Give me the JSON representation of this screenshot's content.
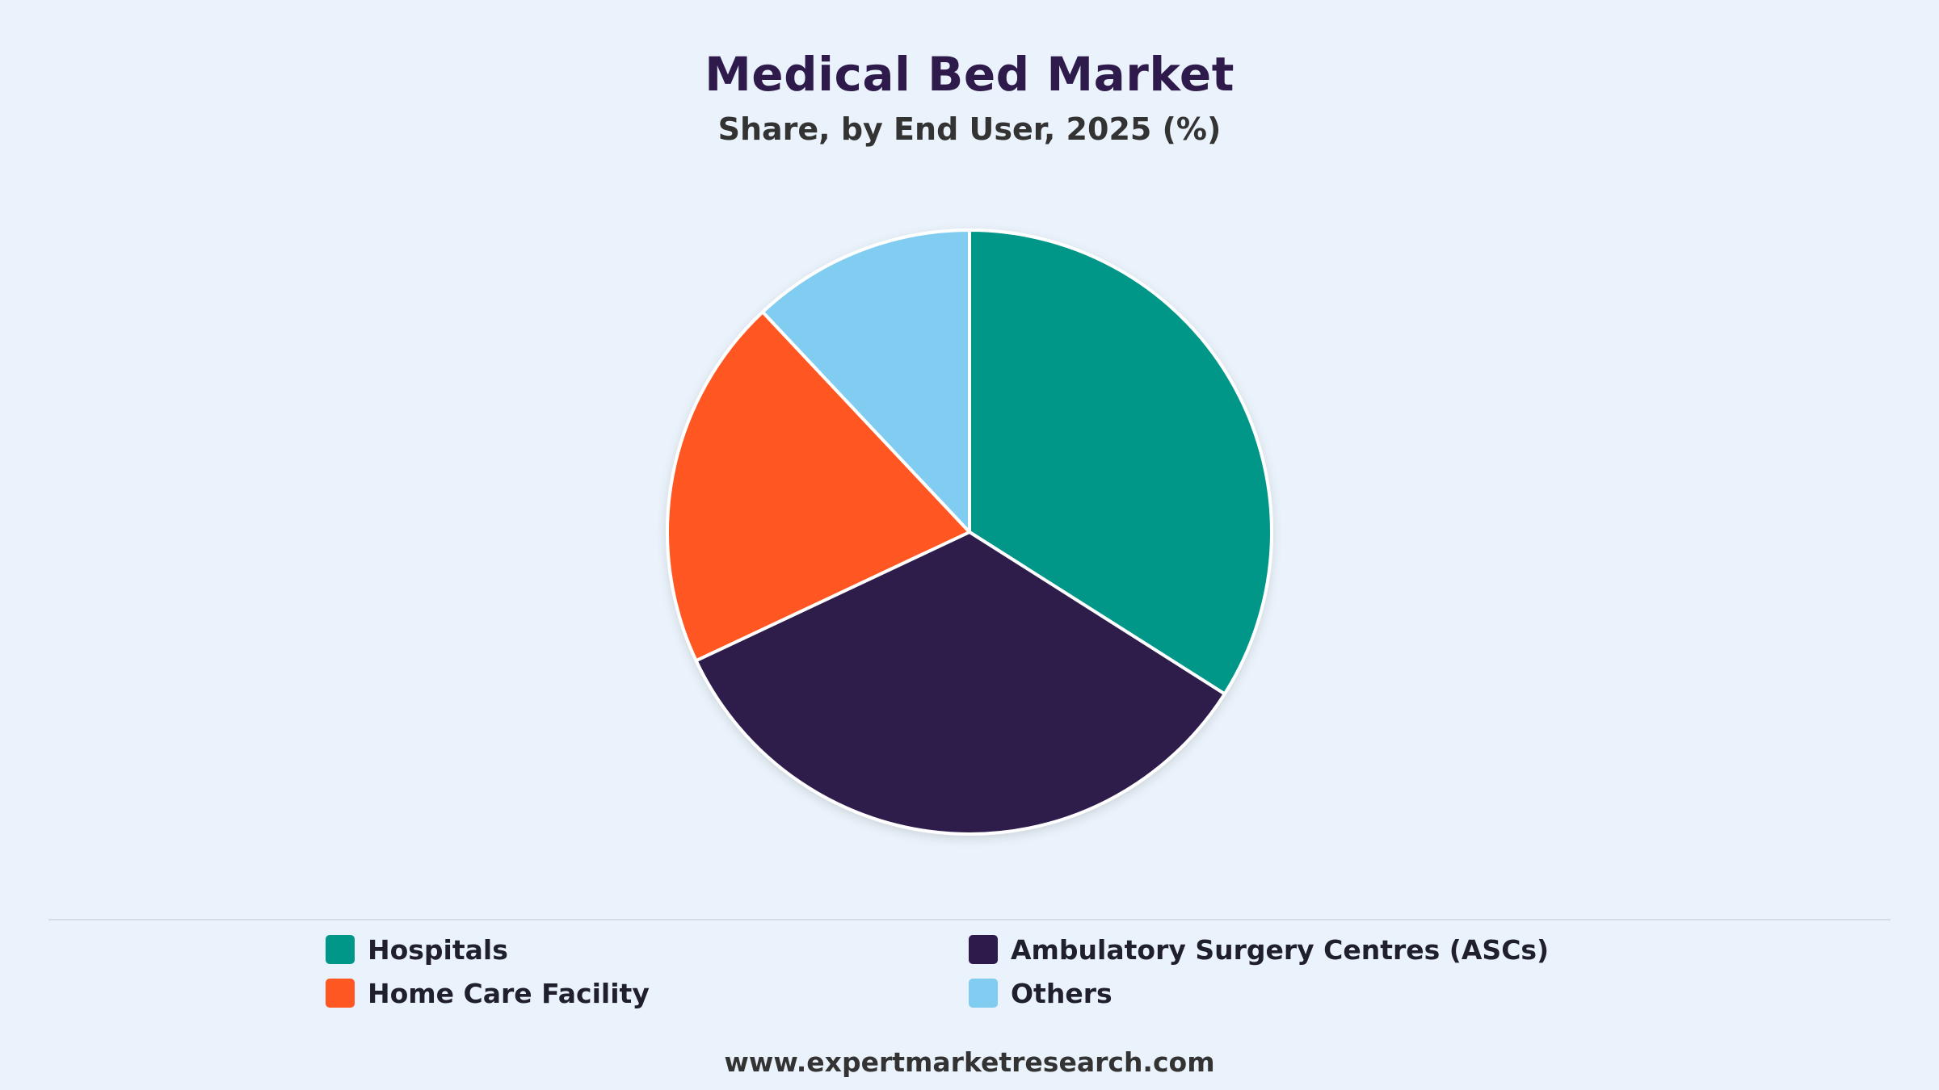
{
  "chart_data": {
    "type": "pie",
    "title": "Medical Bed Market",
    "subtitle": "Share, by End User, 2025 (%)",
    "categories": [
      "Hospitals",
      "Ambulatory Surgery Centres (ASCs)",
      "Home Care Facility",
      "Others"
    ],
    "values": [
      34,
      34,
      20,
      12
    ],
    "colors": [
      "#009688",
      "#2e1a4b",
      "#ff5722",
      "#81cdf2"
    ],
    "legend_position": "bottom"
  },
  "footer": {
    "source": "www.expertmarketresearch.com"
  }
}
